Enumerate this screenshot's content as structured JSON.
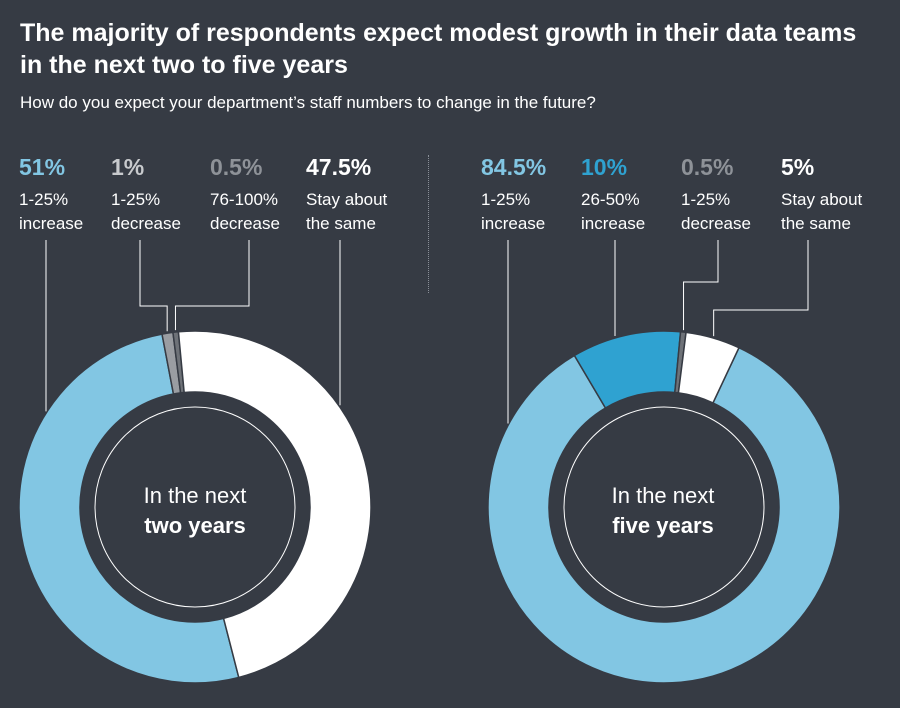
{
  "title": "The majority of respondents expect modest growth in their data teams in the next two to five years",
  "subtitle": "How do you expect your department’s staff numbers to change in the future?",
  "colors": {
    "background": "#363b44",
    "light_blue": "#82c6e3",
    "mid_blue": "#2fa2d1",
    "white": "#ffffff",
    "gray": "#9a9da2",
    "dark_gray": "#6e7278"
  },
  "chart_data": [
    {
      "type": "pie",
      "title": "In the next two years",
      "center_line1": "In the next",
      "center_line2": "two years",
      "slices": [
        {
          "pct_label": "51%",
          "label_line1": "1-25%",
          "label_line2": "increase",
          "value": 51,
          "color": "#82c6e3",
          "label_color": "#82c6e3"
        },
        {
          "pct_label": "1%",
          "label_line1": "1-25%",
          "label_line2": "decrease",
          "value": 1,
          "color": "#9a9da2",
          "label_color": "#c8cacd"
        },
        {
          "pct_label": "0.5%",
          "label_line1": "76-100%",
          "label_line2": "decrease",
          "value": 0.5,
          "color": "#6e7278",
          "label_color": "#8e9298"
        },
        {
          "pct_label": "47.5%",
          "label_line1": "Stay about",
          "label_line2": "the same",
          "value": 47.5,
          "color": "#ffffff",
          "label_color": "#ffffff"
        }
      ]
    },
    {
      "type": "pie",
      "title": "In the next five years",
      "center_line1": "In the next",
      "center_line2": "five years",
      "slices": [
        {
          "pct_label": "84.5%",
          "label_line1": "1-25%",
          "label_line2": "increase",
          "value": 84.5,
          "color": "#82c6e3",
          "label_color": "#82c6e3"
        },
        {
          "pct_label": "10%",
          "label_line1": "26-50%",
          "label_line2": "increase",
          "value": 10,
          "color": "#2fa2d1",
          "label_color": "#2fa2d1"
        },
        {
          "pct_label": "0.5%",
          "label_line1": "1-25%",
          "label_line2": "decrease",
          "value": 0.5,
          "color": "#6e7278",
          "label_color": "#8e9298"
        },
        {
          "pct_label": "5%",
          "label_line1": "Stay about",
          "label_line2": "the same",
          "value": 5,
          "color": "#ffffff",
          "label_color": "#ffffff"
        }
      ]
    }
  ]
}
